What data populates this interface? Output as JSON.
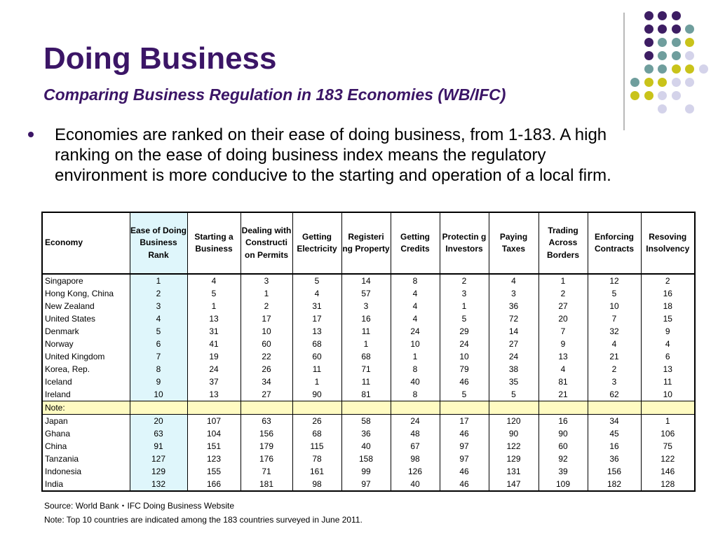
{
  "slide": {
    "title": "Doing Business",
    "subtitle": "Comparing Business Regulation in 183 Economies (WB/IFC)",
    "bullet": "Economies are ranked on their ease of doing business, from 1-183. A high ranking on the ease of doing business index means the regulatory environment is more conducive to the starting and operation of a local firm."
  },
  "colors": {
    "title": "#3b1566",
    "dot_purple": "#3d1d63",
    "dot_teal": "#6f9e9d",
    "dot_yellow": "#c9c31a",
    "dot_lavender": "#d4d3ea",
    "highlight_column": "#dff6fb",
    "note_row": "#fffbc2"
  },
  "table": {
    "headers": [
      "Economy",
      "Ease of Doing Business Rank",
      "Starting a Business",
      "Dealing with Constructi on Permits",
      "Getting Electricity",
      "Registeri ng Property",
      "Getting Credits",
      "Protectin g Investors",
      "Paying Taxes",
      "Trading Across Borders",
      "Enforcing Contracts",
      "Resoving Insolvency"
    ],
    "top_rows": [
      [
        "Singapore",
        "1",
        "4",
        "3",
        "5",
        "14",
        "8",
        "2",
        "4",
        "1",
        "12",
        "2"
      ],
      [
        "Hong Kong, China",
        "2",
        "5",
        "1",
        "4",
        "57",
        "4",
        "3",
        "3",
        "2",
        "5",
        "16"
      ],
      [
        "New Zealand",
        "3",
        "1",
        "2",
        "31",
        "3",
        "4",
        "1",
        "36",
        "27",
        "10",
        "18"
      ],
      [
        "United States",
        "4",
        "13",
        "17",
        "17",
        "16",
        "4",
        "5",
        "72",
        "20",
        "7",
        "15"
      ],
      [
        "Denmark",
        "5",
        "31",
        "10",
        "13",
        "11",
        "24",
        "29",
        "14",
        "7",
        "32",
        "9"
      ],
      [
        "Norway",
        "6",
        "41",
        "60",
        "68",
        "1",
        "10",
        "24",
        "27",
        "9",
        "4",
        "4"
      ],
      [
        "United Kingdom",
        "7",
        "19",
        "22",
        "60",
        "68",
        "1",
        "10",
        "24",
        "13",
        "21",
        "6"
      ],
      [
        "Korea, Rep.",
        "8",
        "24",
        "26",
        "11",
        "71",
        "8",
        "79",
        "38",
        "4",
        "2",
        "13"
      ],
      [
        "Iceland",
        "9",
        "37",
        "34",
        "1",
        "11",
        "40",
        "46",
        "35",
        "81",
        "3",
        "11"
      ],
      [
        "Ireland",
        "10",
        "13",
        "27",
        "90",
        "81",
        "8",
        "5",
        "5",
        "21",
        "62",
        "10"
      ]
    ],
    "note_label": "Note:",
    "bottom_rows": [
      [
        "Japan",
        "20",
        "107",
        "63",
        "26",
        "58",
        "24",
        "17",
        "120",
        "16",
        "34",
        "1"
      ],
      [
        "Ghana",
        "63",
        "104",
        "156",
        "68",
        "36",
        "48",
        "46",
        "90",
        "90",
        "45",
        "106"
      ],
      [
        "China",
        "91",
        "151",
        "179",
        "115",
        "40",
        "67",
        "97",
        "122",
        "60",
        "16",
        "75"
      ],
      [
        "Tanzania",
        "127",
        "123",
        "176",
        "78",
        "158",
        "98",
        "97",
        "129",
        "92",
        "36",
        "122"
      ],
      [
        "Indonesia",
        "129",
        "155",
        "71",
        "161",
        "99",
        "126",
        "46",
        "131",
        "39",
        "156",
        "146"
      ],
      [
        "India",
        "132",
        "166",
        "181",
        "98",
        "97",
        "40",
        "46",
        "147",
        "109",
        "182",
        "128"
      ]
    ]
  },
  "footnotes": {
    "source": "Source: World Bank・IFC  Doing Business Website",
    "note": "Note: Top 10 countries are indicated among the 183 countries surveyed in June 2011."
  }
}
